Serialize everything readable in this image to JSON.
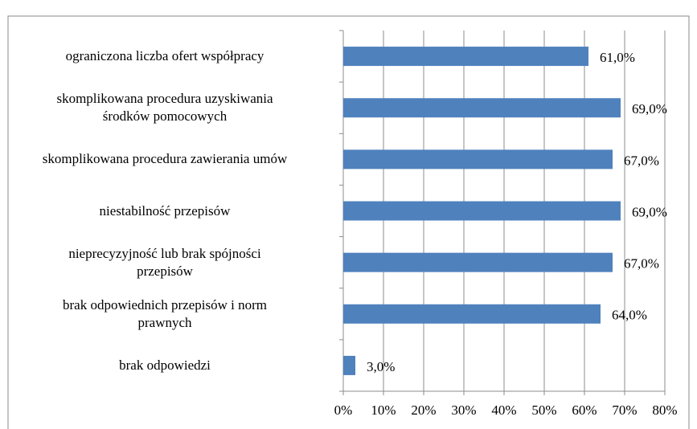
{
  "chart_data": {
    "type": "bar",
    "orientation": "horizontal",
    "categories": [
      "ograniczona liczba ofert współpracy",
      "skomplikowana procedura uzyskiwania\nśrodków pomocowych",
      "skomplikowana procedura zawierania umów",
      "niestabilność przepisów",
      "nieprecyzyjność lub brak spójności\nprzepisów",
      "brak odpowiednich przepisów i norm\nprawnych",
      "brak odpowiedzi"
    ],
    "values": [
      61,
      69,
      67,
      69,
      67,
      64,
      3
    ],
    "value_labels": [
      "61,0%",
      "69,0%",
      "67,0%",
      "69,0%",
      "67,0%",
      "64,0%",
      "3,0%"
    ],
    "color": "#4f81bd",
    "xlim": [
      0,
      80
    ],
    "xticks": [
      {
        "value": 0,
        "label": "0%"
      },
      {
        "value": 10,
        "label": "10%"
      },
      {
        "value": 20,
        "label": "20%"
      },
      {
        "value": 30,
        "label": "30%"
      },
      {
        "value": 40,
        "label": "40%"
      },
      {
        "value": 50,
        "label": "50%"
      },
      {
        "value": 60,
        "label": "60%"
      },
      {
        "value": 70,
        "label": "70%"
      },
      {
        "value": 80,
        "label": "80%"
      }
    ],
    "grid": true
  }
}
